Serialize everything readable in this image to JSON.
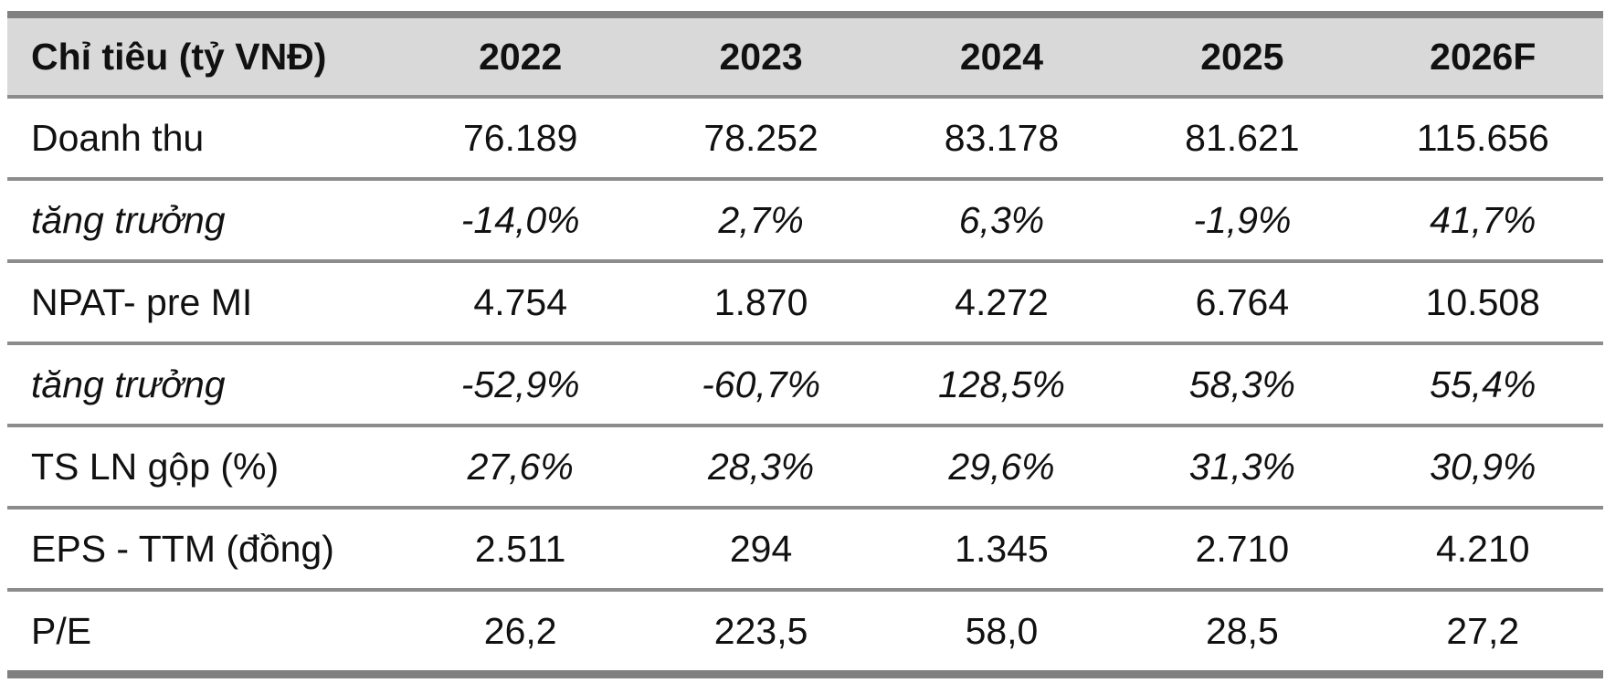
{
  "chart_data": {
    "type": "table",
    "header": {
      "label": "Chỉ tiêu (tỷ VNĐ)",
      "years": [
        "2022",
        "2023",
        "2024",
        "2025",
        "2026F"
      ]
    },
    "rows": [
      {
        "label": "Doanh thu",
        "values": [
          "76.189",
          "78.252",
          "83.178",
          "81.621",
          "115.656"
        ],
        "italic_label": false,
        "italic_values": false
      },
      {
        "label": "tăng trưởng",
        "values": [
          "-14,0%",
          "2,7%",
          "6,3%",
          "-1,9%",
          "41,7%"
        ],
        "italic_label": true,
        "italic_values": true
      },
      {
        "label": "NPAT- pre MI",
        "values": [
          "4.754",
          "1.870",
          "4.272",
          "6.764",
          "10.508"
        ],
        "italic_label": false,
        "italic_values": false
      },
      {
        "label": "tăng trưởng",
        "values": [
          "-52,9%",
          "-60,7%",
          "128,5%",
          "58,3%",
          "55,4%"
        ],
        "italic_label": true,
        "italic_values": true
      },
      {
        "label": "TS LN gộp (%)",
        "values": [
          "27,6%",
          "28,3%",
          "29,6%",
          "31,3%",
          "30,9%"
        ],
        "italic_label": false,
        "italic_values": true
      },
      {
        "label": "EPS - TTM (đồng)",
        "values": [
          "2.511",
          "294",
          "1.345",
          "2.710",
          "4.210"
        ],
        "italic_label": false,
        "italic_values": false
      },
      {
        "label": "P/E",
        "values": [
          "26,2",
          "223,5",
          "58,0",
          "28,5",
          "27,2"
        ],
        "italic_label": false,
        "italic_values": false
      }
    ],
    "colors": {
      "header_background": "#d9d9d9",
      "rule": "#8c8c8c",
      "text": "#111111"
    }
  }
}
